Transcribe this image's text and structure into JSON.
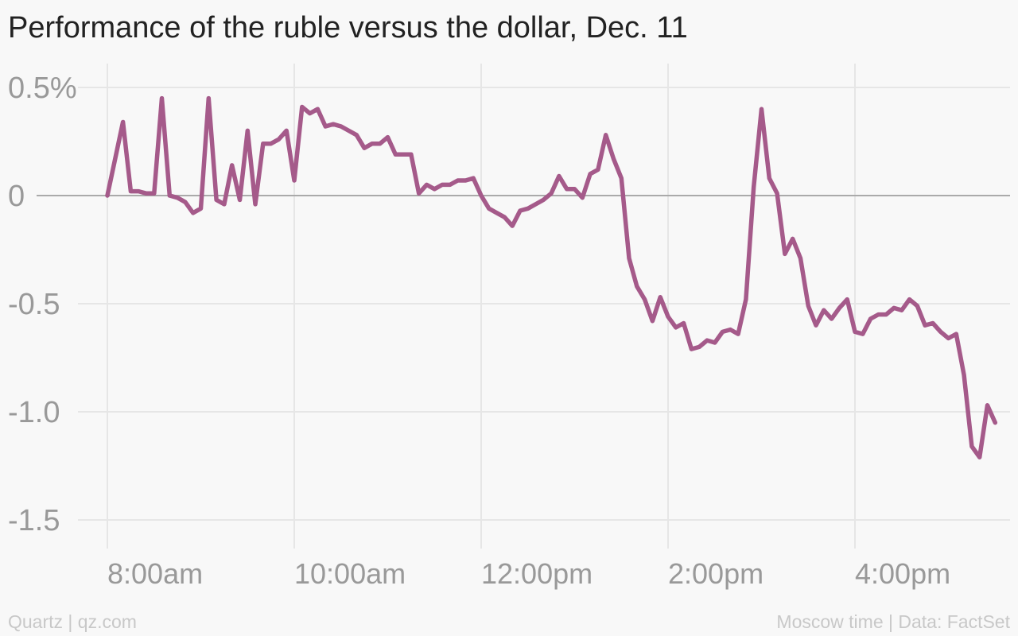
{
  "title": "Performance of the ruble versus the dollar, Dec. 11",
  "footer": {
    "source_left": "Quartz | qz.com",
    "source_right": "Moscow time | Data: FactSet"
  },
  "colors": {
    "line": "#a55a8a",
    "zero_line": "#aaaaaa",
    "grid": "#e6e6e6",
    "tick_text": "#999999",
    "background": "#f8f8f8"
  },
  "chart_data": {
    "type": "line",
    "title": "Performance of the ruble versus the dollar, Dec. 11",
    "xlabel": "",
    "ylabel": "",
    "ylim": [
      -1.5,
      0.5
    ],
    "xlim": [
      "7:59am",
      "17:40pm"
    ],
    "grid": true,
    "x_ticks": [
      "8:00am",
      "10:00am",
      "12:00pm",
      "2:00pm",
      "4:00pm"
    ],
    "y_ticks": [
      {
        "value": 0.5,
        "label": "0.5%"
      },
      {
        "value": 0,
        "label": "0"
      },
      {
        "value": -0.5,
        "label": "-0.5"
      },
      {
        "value": -1.0,
        "label": "-1.0"
      },
      {
        "value": -1.5,
        "label": "-1.5"
      }
    ],
    "series": [
      {
        "points": [
          [
            "8:00am",
            0.0
          ],
          [
            "8:10am",
            0.34
          ],
          [
            "8:15am",
            0.02
          ],
          [
            "8:20am",
            0.02
          ],
          [
            "8:25am",
            0.01
          ],
          [
            "8:30am",
            0.01
          ],
          [
            "8:35am",
            0.45
          ],
          [
            "8:40am",
            0.0
          ],
          [
            "8:45am",
            -0.01
          ],
          [
            "8:50am",
            -0.03
          ],
          [
            "8:55am",
            -0.08
          ],
          [
            "9:00am",
            -0.06
          ],
          [
            "9:05am",
            0.45
          ],
          [
            "9:10am",
            -0.02
          ],
          [
            "9:15am",
            -0.04
          ],
          [
            "9:20am",
            0.14
          ],
          [
            "9:25am",
            -0.02
          ],
          [
            "9:30am",
            0.3
          ],
          [
            "9:35am",
            -0.04
          ],
          [
            "9:40am",
            0.24
          ],
          [
            "9:45am",
            0.24
          ],
          [
            "9:50am",
            0.26
          ],
          [
            "9:55am",
            0.3
          ],
          [
            "10:00am",
            0.07
          ],
          [
            "10:05am",
            0.41
          ],
          [
            "10:10am",
            0.38
          ],
          [
            "10:15am",
            0.4
          ],
          [
            "10:20am",
            0.32
          ],
          [
            "10:25am",
            0.33
          ],
          [
            "10:30am",
            0.32
          ],
          [
            "10:35am",
            0.3
          ],
          [
            "10:40am",
            0.28
          ],
          [
            "10:45am",
            0.22
          ],
          [
            "10:50am",
            0.24
          ],
          [
            "10:55am",
            0.24
          ],
          [
            "11:00am",
            0.27
          ],
          [
            "11:05am",
            0.19
          ],
          [
            "11:10am",
            0.19
          ],
          [
            "11:15am",
            0.19
          ],
          [
            "11:20am",
            0.01
          ],
          [
            "11:25am",
            0.05
          ],
          [
            "11:30am",
            0.03
          ],
          [
            "11:35am",
            0.05
          ],
          [
            "11:40am",
            0.05
          ],
          [
            "11:45am",
            0.07
          ],
          [
            "11:50am",
            0.07
          ],
          [
            "11:55am",
            0.08
          ],
          [
            "12:00pm",
            0.0
          ],
          [
            "12:05pm",
            -0.06
          ],
          [
            "12:10pm",
            -0.08
          ],
          [
            "12:15pm",
            -0.1
          ],
          [
            "12:20pm",
            -0.14
          ],
          [
            "12:25pm",
            -0.07
          ],
          [
            "12:30pm",
            -0.06
          ],
          [
            "12:35pm",
            -0.04
          ],
          [
            "12:40pm",
            -0.02
          ],
          [
            "12:45pm",
            0.01
          ],
          [
            "12:50pm",
            0.09
          ],
          [
            "12:55pm",
            0.03
          ],
          [
            "1:00pm",
            0.03
          ],
          [
            "1:05pm",
            -0.01
          ],
          [
            "1:10pm",
            0.1
          ],
          [
            "1:15pm",
            0.12
          ],
          [
            "1:20pm",
            0.28
          ],
          [
            "1:25pm",
            0.17
          ],
          [
            "1:30pm",
            0.08
          ],
          [
            "1:35pm",
            -0.29
          ],
          [
            "1:40pm",
            -0.42
          ],
          [
            "1:45pm",
            -0.48
          ],
          [
            "1:50pm",
            -0.58
          ],
          [
            "1:55pm",
            -0.47
          ],
          [
            "2:00pm",
            -0.56
          ],
          [
            "2:05pm",
            -0.61
          ],
          [
            "2:10pm",
            -0.59
          ],
          [
            "2:15pm",
            -0.71
          ],
          [
            "2:20pm",
            -0.7
          ],
          [
            "2:25pm",
            -0.67
          ],
          [
            "2:30pm",
            -0.68
          ],
          [
            "2:35pm",
            -0.63
          ],
          [
            "2:40pm",
            -0.62
          ],
          [
            "2:45pm",
            -0.64
          ],
          [
            "2:50pm",
            -0.48
          ],
          [
            "2:55pm",
            0.04
          ],
          [
            "3:00pm",
            0.4
          ],
          [
            "3:05pm",
            0.08
          ],
          [
            "3:10pm",
            0.01
          ],
          [
            "3:15pm",
            -0.27
          ],
          [
            "3:20pm",
            -0.2
          ],
          [
            "3:25pm",
            -0.29
          ],
          [
            "3:30pm",
            -0.51
          ],
          [
            "3:35pm",
            -0.6
          ],
          [
            "3:40pm",
            -0.53
          ],
          [
            "3:45pm",
            -0.57
          ],
          [
            "3:50pm",
            -0.52
          ],
          [
            "3:55pm",
            -0.48
          ],
          [
            "4:00pm",
            -0.63
          ],
          [
            "4:05pm",
            -0.64
          ],
          [
            "4:10pm",
            -0.57
          ],
          [
            "4:15pm",
            -0.55
          ],
          [
            "4:20pm",
            -0.55
          ],
          [
            "4:25pm",
            -0.52
          ],
          [
            "4:30pm",
            -0.53
          ],
          [
            "4:35pm",
            -0.48
          ],
          [
            "4:40pm",
            -0.51
          ],
          [
            "4:45pm",
            -0.6
          ],
          [
            "4:50pm",
            -0.59
          ],
          [
            "4:55pm",
            -0.63
          ],
          [
            "5:00pm",
            -0.66
          ],
          [
            "5:05pm",
            -0.64
          ],
          [
            "5:10pm",
            -0.83
          ],
          [
            "5:15pm",
            -1.16
          ],
          [
            "5:20pm",
            -1.21
          ],
          [
            "5:25pm",
            -0.97
          ],
          [
            "5:30pm",
            -1.05
          ]
        ]
      }
    ]
  }
}
